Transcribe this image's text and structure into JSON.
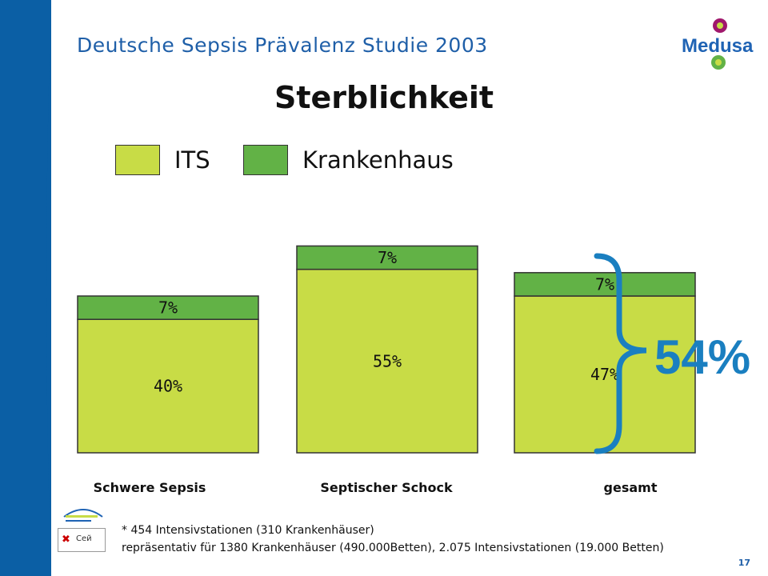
{
  "header": {
    "subtitle": "Deutsche Sepsis Prävalenz Studie 2003",
    "logo_text": "Medusa"
  },
  "chart_data": {
    "type": "bar",
    "stacked": true,
    "title": "Sterblichkeit",
    "categories": [
      "Schwere Sepsis",
      "Septischer Schock",
      "gesamt"
    ],
    "series": [
      {
        "name": "ITS",
        "values": [
          40,
          55,
          47
        ],
        "labels": [
          "40%",
          "55%",
          "47%"
        ],
        "color": "#c8dc46"
      },
      {
        "name": "Krankenhaus",
        "values": [
          7,
          7,
          7
        ],
        "labels": [
          "7%",
          "7%",
          "7%"
        ],
        "color": "#62b246"
      }
    ],
    "annotation": "54%",
    "annotation_color": "#1a7fc0",
    "legend_position": "top"
  },
  "footnotes": {
    "line1": "* 454 Intensivstationen (310 Krankenhäuser)",
    "line2": "repräsentativ für 1380 Krankenhäuser (490.000Betten), 2.075 Intensivstationen (19.000 Betten)"
  },
  "broken_image_text": "Сей",
  "page_number": "17",
  "colors": {
    "band": "#0b5fa5",
    "subtitle": "#1f5fa8"
  }
}
